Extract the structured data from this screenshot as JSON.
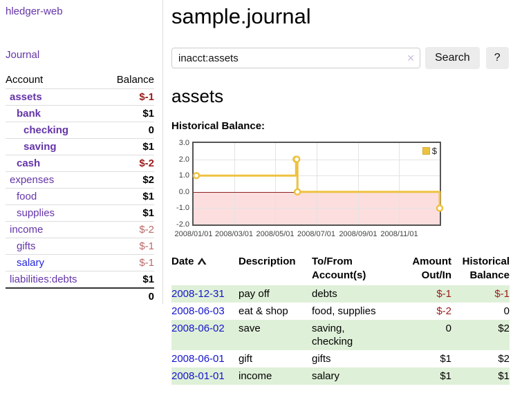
{
  "colors": {
    "link_purple": "#6434a8",
    "link_blue": "#2424dd",
    "date_link_blue": "#1414cc",
    "negative_strong": "#9b1c1c",
    "negative_soft": "#bb6a6a",
    "row_highlight_green": "#dff0d8",
    "series_gold": "#edc240",
    "negative_region_pink": "#fcdede",
    "zero_line_red": "#8b2020",
    "plot_border_gray": "#545454",
    "button_gray": "#ececec"
  },
  "sidebar": {
    "brand": "hledger-web",
    "journal_link": "Journal",
    "accounts": {
      "headers": {
        "account": "Account",
        "balance": "Balance"
      },
      "rows": [
        {
          "name": "assets",
          "depth": 1,
          "bold": true,
          "unvisited": false,
          "balance": "$-1",
          "balance_style": "neg-strong"
        },
        {
          "name": "bank",
          "depth": 2,
          "bold": true,
          "unvisited": false,
          "balance": "$1",
          "balance_style": "normal"
        },
        {
          "name": "checking",
          "depth": 3,
          "bold": true,
          "unvisited": false,
          "balance": "0",
          "balance_style": "normal"
        },
        {
          "name": "saving",
          "depth": 3,
          "bold": true,
          "unvisited": false,
          "balance": "$1",
          "balance_style": "normal"
        },
        {
          "name": "cash",
          "depth": 2,
          "bold": true,
          "unvisited": false,
          "balance": "$-2",
          "balance_style": "neg-strong"
        },
        {
          "name": "expenses",
          "depth": 1,
          "bold": false,
          "unvisited": false,
          "balance": "$2",
          "balance_style": "normal"
        },
        {
          "name": "food",
          "depth": 2,
          "bold": false,
          "unvisited": false,
          "balance": "$1",
          "balance_style": "normal"
        },
        {
          "name": "supplies",
          "depth": 2,
          "bold": false,
          "unvisited": false,
          "balance": "$1",
          "balance_style": "normal"
        },
        {
          "name": "income",
          "depth": 1,
          "bold": false,
          "unvisited": false,
          "balance": "$-2",
          "balance_style": "neg-soft"
        },
        {
          "name": "gifts",
          "depth": 2,
          "bold": false,
          "unvisited": false,
          "balance": "$-1",
          "balance_style": "neg-soft"
        },
        {
          "name": "salary",
          "depth": 2,
          "bold": false,
          "unvisited": true,
          "balance": "$-1",
          "balance_style": "neg-soft"
        },
        {
          "name": "liabilities:debts",
          "depth": 1,
          "bold": false,
          "unvisited": false,
          "balance": "$1",
          "balance_style": "normal"
        }
      ],
      "total": "0"
    }
  },
  "main": {
    "title": "sample.journal",
    "search": {
      "value": "inacct:assets",
      "clear_icon": "✕",
      "search_button": "Search",
      "help_button": "?"
    },
    "account_heading": "assets",
    "chart_title": "Historical Balance:"
  },
  "chart_data": {
    "type": "line",
    "title": "Historical Balance:",
    "xlabel": "",
    "ylabel": "",
    "ylim": [
      -2,
      3
    ],
    "xlim_days": [
      0,
      365
    ],
    "grid": true,
    "legend_position": "top-right",
    "legend": {
      "label": "$"
    },
    "y_ticks": [
      {
        "value": 3,
        "label": "3.0"
      },
      {
        "value": 2,
        "label": "2.0"
      },
      {
        "value": 1,
        "label": "1.0"
      },
      {
        "value": 0,
        "label": "0.0"
      },
      {
        "value": -1,
        "label": "-1.0"
      },
      {
        "value": -2,
        "label": "-2.0"
      }
    ],
    "x_ticks": [
      {
        "day": 0,
        "label": "2008/01/01"
      },
      {
        "day": 60,
        "label": "2008/03/01"
      },
      {
        "day": 121,
        "label": "2008/05/01"
      },
      {
        "day": 182,
        "label": "2008/07/01"
      },
      {
        "day": 244,
        "label": "2008/09/01"
      },
      {
        "day": 305,
        "label": "2008/11/01"
      }
    ],
    "series": [
      {
        "name": "$",
        "color": "#edc240",
        "step": true,
        "points": [
          {
            "date": "2008-01-01",
            "day": 0,
            "value": 1
          },
          {
            "date": "2008-06-01",
            "day": 152,
            "value": 2
          },
          {
            "date": "2008-06-02",
            "day": 153,
            "value": 2
          },
          {
            "date": "2008-06-03",
            "day": 154,
            "value": 0
          },
          {
            "date": "2008-12-31",
            "day": 365,
            "value": -1
          }
        ]
      }
    ]
  },
  "register": {
    "headers": {
      "date": "Date",
      "description": "Description",
      "accounts": "To/From\nAccount(s)",
      "amount": "Amount\nOut/In",
      "balance": "Historical\nBalance"
    },
    "rows": [
      {
        "date": "2008-12-31",
        "description": "pay off",
        "accounts": "debts",
        "amount": "$-1",
        "amount_negative": true,
        "balance": "$-1",
        "balance_negative": true,
        "highlight": true
      },
      {
        "date": "2008-06-03",
        "description": "eat & shop",
        "accounts": "food, supplies",
        "amount": "$-2",
        "amount_negative": true,
        "balance": "0",
        "balance_negative": false,
        "highlight": false
      },
      {
        "date": "2008-06-02",
        "description": "save",
        "accounts": "saving,\nchecking",
        "amount": "0",
        "amount_negative": false,
        "balance": "$2",
        "balance_negative": false,
        "highlight": true
      },
      {
        "date": "2008-06-01",
        "description": "gift",
        "accounts": "gifts",
        "amount": "$1",
        "amount_negative": false,
        "balance": "$2",
        "balance_negative": false,
        "highlight": false
      },
      {
        "date": "2008-01-01",
        "description": "income",
        "accounts": "salary",
        "amount": "$1",
        "amount_negative": false,
        "balance": "$1",
        "balance_negative": false,
        "highlight": true
      }
    ]
  }
}
